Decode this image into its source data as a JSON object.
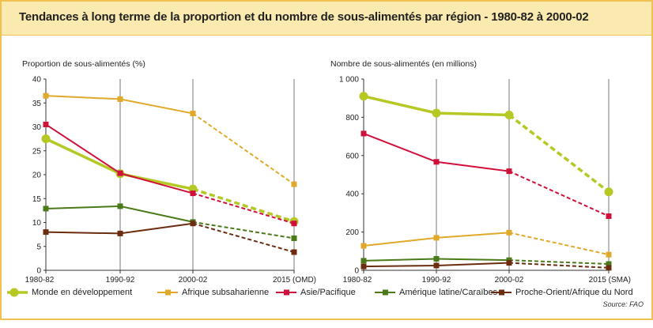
{
  "title": "Tendances à long terme de la proportion et du nombre de sous-alimentés par région - 1980-82 à 2000-02",
  "source": "Source: FAO",
  "legend": [
    {
      "name": "Monde en développement",
      "color": "#b5c823",
      "marker": "circle"
    },
    {
      "name": "Afrique subsaharienne",
      "color": "#e0a92a",
      "marker": "square"
    },
    {
      "name": "Asie/Pacifique",
      "color": "#d0103a",
      "marker": "square"
    },
    {
      "name": "Amérique latine/Caraïbes",
      "color": "#4a7a1a",
      "marker": "square"
    },
    {
      "name": "Proche-Orient/Afrique du Nord",
      "color": "#6b2c10",
      "marker": "square"
    }
  ],
  "chart_data": [
    {
      "type": "line",
      "ylabel": "Proportion de sous-alimentés (%)",
      "categories": [
        "1980-82",
        "1990-92",
        "2000-02",
        "2015 (OMD)"
      ],
      "yticks": [
        0,
        5,
        10,
        15,
        20,
        25,
        30,
        35,
        40
      ],
      "yticklabels": [
        "0",
        "5",
        "10",
        "15",
        "20",
        "25",
        "30",
        "35",
        "40"
      ],
      "ylim": [
        0,
        40
      ],
      "grid": "vertical",
      "projection_from_index": 2,
      "series": [
        {
          "name": "Monde en développement",
          "values": [
            27.5,
            20.2,
            17.0,
            10.2
          ]
        },
        {
          "name": "Afrique subsaharienne",
          "values": [
            36.5,
            35.8,
            32.8,
            18.0
          ]
        },
        {
          "name": "Asie/Pacifique",
          "values": [
            30.5,
            20.3,
            16.1,
            9.8
          ]
        },
        {
          "name": "Amérique latine/Caraïbes",
          "values": [
            12.9,
            13.4,
            10.1,
            6.7
          ]
        },
        {
          "name": "Proche-Orient/Afrique du Nord",
          "values": [
            8.0,
            7.7,
            9.8,
            3.8
          ]
        }
      ]
    },
    {
      "type": "line",
      "ylabel": "Nombre de sous-alimentés (en millions)",
      "categories": [
        "1980-82",
        "1990-92",
        "2000-02",
        "2015 (SMA)"
      ],
      "yticks": [
        0,
        200,
        400,
        600,
        800,
        1000
      ],
      "yticklabels": [
        "0",
        "200",
        "400",
        "600",
        "800",
        "1 000"
      ],
      "ylim": [
        0,
        1000
      ],
      "grid": "vertical",
      "projection_from_index": 2,
      "series": [
        {
          "name": "Monde en développement",
          "values": [
            910,
            822,
            812,
            410
          ]
        },
        {
          "name": "Afrique subsaharienne",
          "values": [
            128,
            170,
            197,
            82
          ]
        },
        {
          "name": "Asie/Pacifique",
          "values": [
            715,
            567,
            518,
            283
          ]
        },
        {
          "name": "Amérique latine/Caraïbes",
          "values": [
            50,
            60,
            53,
            33
          ]
        },
        {
          "name": "Proche-Orient/Afrique du Nord",
          "values": [
            20,
            25,
            39,
            13
          ]
        }
      ]
    }
  ]
}
